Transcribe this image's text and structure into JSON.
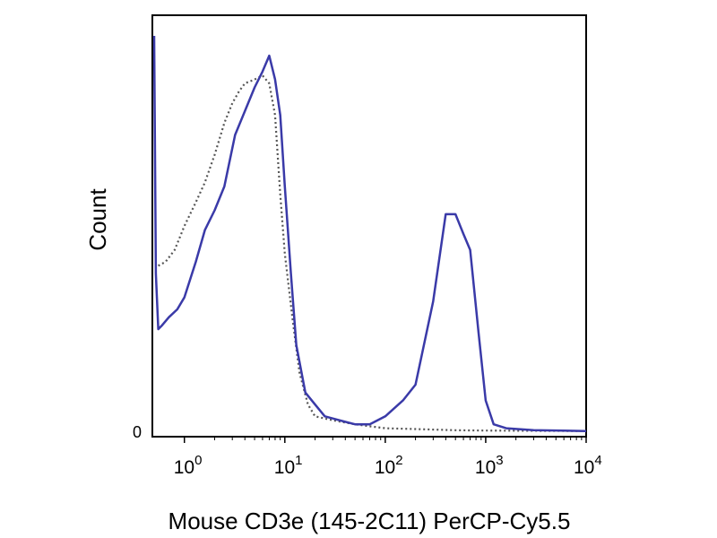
{
  "chart_data": {
    "type": "line",
    "title": "",
    "xlabel": "Mouse CD3e (145-2C11) PerCP-Cy5.5",
    "ylabel": "Count",
    "xscale": "log",
    "xlim": [
      0.5,
      10000
    ],
    "ylim": [
      0,
      1
    ],
    "x_ticks": [
      {
        "value": 1,
        "base": "10",
        "exp": "0"
      },
      {
        "value": 10,
        "base": "10",
        "exp": "1"
      },
      {
        "value": 100,
        "base": "10",
        "exp": "2"
      },
      {
        "value": 1000,
        "base": "10",
        "exp": "3"
      },
      {
        "value": 10000,
        "base": "10",
        "exp": "4"
      }
    ],
    "y_zero_label": "0",
    "grid": false,
    "legend": "none",
    "series": [
      {
        "style": "solid",
        "color": "#3a3aa8",
        "points": [
          [
            0.5,
            1.0
          ],
          [
            0.52,
            0.4
          ],
          [
            0.55,
            0.26
          ],
          [
            0.6,
            0.27
          ],
          [
            0.7,
            0.29
          ],
          [
            0.85,
            0.31
          ],
          [
            1.0,
            0.34
          ],
          [
            1.3,
            0.43
          ],
          [
            1.6,
            0.51
          ],
          [
            2.0,
            0.56
          ],
          [
            2.5,
            0.62
          ],
          [
            3.2,
            0.75
          ],
          [
            4.0,
            0.81
          ],
          [
            5.0,
            0.87
          ],
          [
            6.0,
            0.91
          ],
          [
            7.0,
            0.95
          ],
          [
            8.0,
            0.89
          ],
          [
            9.0,
            0.8
          ],
          [
            10.0,
            0.62
          ],
          [
            11.5,
            0.4
          ],
          [
            13.0,
            0.22
          ],
          [
            16.0,
            0.1
          ],
          [
            20.0,
            0.07
          ],
          [
            25.0,
            0.04
          ],
          [
            35.0,
            0.03
          ],
          [
            50.0,
            0.02
          ],
          [
            70.0,
            0.02
          ],
          [
            100.0,
            0.04
          ],
          [
            150.0,
            0.08
          ],
          [
            200.0,
            0.12
          ],
          [
            300.0,
            0.33
          ],
          [
            400.0,
            0.55
          ],
          [
            500.0,
            0.55
          ],
          [
            600.0,
            0.5
          ],
          [
            700.0,
            0.46
          ],
          [
            850.0,
            0.25
          ],
          [
            1000.0,
            0.08
          ],
          [
            1200.0,
            0.02
          ],
          [
            1600.0,
            0.01
          ],
          [
            3000.0,
            0.005
          ],
          [
            10000.0,
            0.003
          ]
        ]
      },
      {
        "style": "dotted",
        "color": "#555555",
        "points": [
          [
            0.55,
            0.42
          ],
          [
            0.65,
            0.43
          ],
          [
            0.8,
            0.46
          ],
          [
            1.0,
            0.52
          ],
          [
            1.3,
            0.58
          ],
          [
            1.6,
            0.63
          ],
          [
            2.0,
            0.7
          ],
          [
            2.5,
            0.78
          ],
          [
            3.0,
            0.83
          ],
          [
            3.5,
            0.86
          ],
          [
            4.0,
            0.88
          ],
          [
            5.0,
            0.89
          ],
          [
            6.0,
            0.9
          ],
          [
            7.0,
            0.88
          ],
          [
            8.0,
            0.8
          ],
          [
            9.0,
            0.6
          ],
          [
            10.0,
            0.45
          ],
          [
            12.0,
            0.28
          ],
          [
            14.0,
            0.15
          ],
          [
            17.0,
            0.07
          ],
          [
            20.0,
            0.04
          ],
          [
            30.0,
            0.03
          ],
          [
            50.0,
            0.02
          ],
          [
            70.0,
            0.015
          ],
          [
            100.0,
            0.01
          ],
          [
            200.0,
            0.008
          ],
          [
            500.0,
            0.005
          ],
          [
            1000.0,
            0.004
          ],
          [
            10000.0,
            0.003
          ]
        ]
      }
    ]
  }
}
